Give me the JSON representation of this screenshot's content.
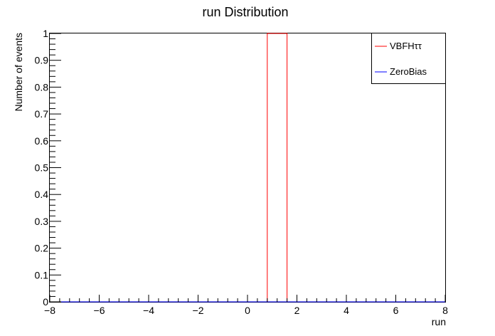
{
  "chart_data": {
    "type": "histogram",
    "title": "run Distribution",
    "xlabel": "run",
    "ylabel": "Number of events",
    "xlim": [
      -8,
      8
    ],
    "ylim": [
      0,
      1
    ],
    "x_ticks": [
      -8,
      -6,
      -4,
      -2,
      0,
      2,
      4,
      6,
      8
    ],
    "y_ticks": [
      0,
      0.1,
      0.2,
      0.3,
      0.4,
      0.5,
      0.6,
      0.7,
      0.8,
      0.9,
      1
    ],
    "grid": false,
    "legend_position": "top-right",
    "series": [
      {
        "name": "VBFHττ",
        "color": "#ff0000",
        "bins": [
          {
            "x0": 0.8,
            "x1": 1.6,
            "value": 1
          }
        ]
      },
      {
        "name": "ZeroBias",
        "color": "#0000ff",
        "bins": [
          {
            "x0": -8,
            "x1": 8,
            "value": 0
          }
        ]
      }
    ]
  }
}
